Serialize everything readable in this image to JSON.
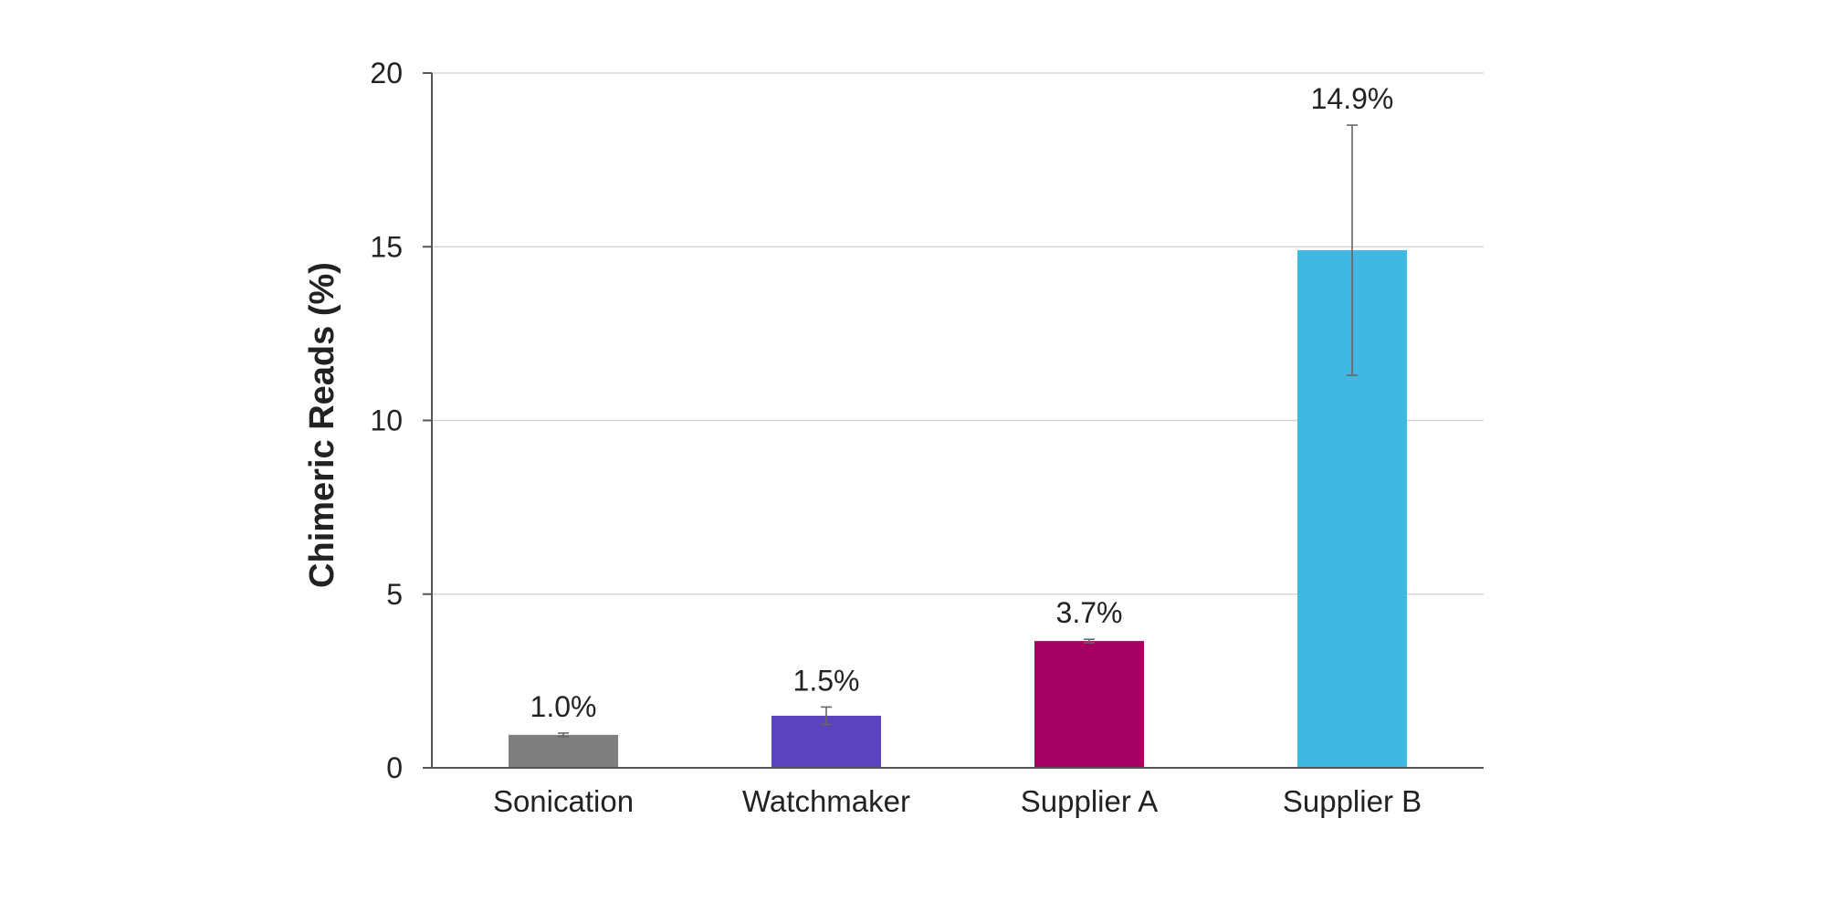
{
  "chart_data": {
    "type": "bar",
    "title": "",
    "xlabel": "",
    "ylabel": "Chimeric Reads (%)",
    "ylim": [
      0,
      20
    ],
    "yticks": [
      0,
      5,
      10,
      15,
      20
    ],
    "ytick_labels": [
      "0",
      "5",
      "10",
      "15",
      "20"
    ],
    "grid": true,
    "categories": [
      "Sonication",
      "Watchmaker",
      "Supplier A",
      "Supplier B"
    ],
    "values": [
      0.95,
      1.5,
      3.65,
      14.9
    ],
    "error_bars": [
      0.05,
      0.25,
      0.05,
      3.6
    ],
    "data_labels": [
      "1.0%",
      "1.5%",
      "3.7%",
      "14.9%"
    ],
    "colors": [
      "#7f7f7f",
      "#5b43bd",
      "#a30062",
      "#41b8e4"
    ]
  }
}
